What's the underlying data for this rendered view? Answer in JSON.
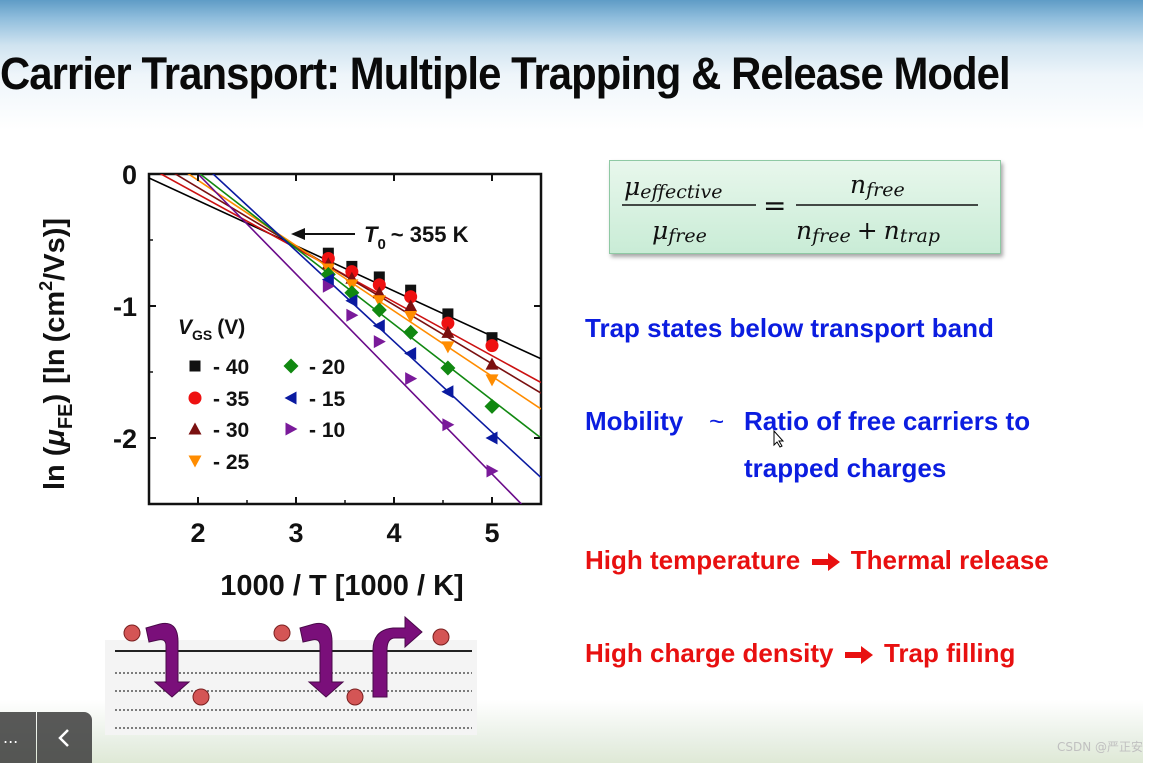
{
  "slide": {
    "title": "Carrier Transport:  Multiple Trapping & Release Model",
    "equation": {
      "lhs_num": "μ",
      "lhs_num_sub": "effective",
      "lhs_den": "μ",
      "lhs_den_sub": "free",
      "equals": "=",
      "rhs_num": "n",
      "rhs_num_sub": "free",
      "rhs_den_a": "n",
      "rhs_den_a_sub": "free",
      "rhs_plus": "+",
      "rhs_den_b": "n",
      "rhs_den_b_sub": "trap"
    },
    "bullets": {
      "b1": "Trap states below transport band",
      "b2_a": "Mobility",
      "b2_tilde": "~",
      "b2_b": "Ratio of free carriers to",
      "b2_c": "trapped charges",
      "b3_a": "High temperature",
      "b3_b": "Thermal release",
      "b4_a": "High charge density",
      "b4_b": "Trap filling"
    },
    "colors": {
      "blue_text": "#0b1de0",
      "red_text": "#e81010",
      "arrow_purple": "#7a0f7a",
      "particle": "#d45555"
    }
  },
  "chart_data": {
    "type": "scatter",
    "ylabel": "ln (μFE) [ln (cm²/Vs)]",
    "ylabel_parts": {
      "pre": "ln",
      "mu": "μ",
      "sub": "FE",
      "unit_pre": "ln",
      "unit_cm": "cm",
      "unit_sup": "2",
      "unit_post": "/Vs"
    },
    "xlabel": "1000 / T [1000 / K]",
    "xlim": [
      1.5,
      5.5
    ],
    "ylim": [
      -2.5,
      0
    ],
    "xticks": [
      2,
      3,
      4,
      5
    ],
    "xtick_labels": [
      "2",
      "3",
      "4",
      "5"
    ],
    "yticks": [
      0,
      -1,
      -2
    ],
    "ytick_labels": [
      "0",
      "-1",
      "-2"
    ],
    "annotation": {
      "label_T": "T",
      "label_sub": "0",
      "label_rest": "~ 355 K",
      "x": 2.82,
      "y": -0.45
    },
    "legend": {
      "title": "V",
      "title_sub": "GS",
      "title_unit": "(V)",
      "placement": "left-center"
    },
    "series": [
      {
        "name": "- 40",
        "marker": "square",
        "color": "#111111",
        "line": "#000000",
        "x": [
          3.33,
          3.57,
          3.85,
          4.17,
          4.55,
          5.0
        ],
        "y": [
          -0.6,
          -0.7,
          -0.78,
          -0.88,
          -1.06,
          -1.24
        ],
        "fit": [
          [
            1.5,
            -0.03
          ],
          [
            5.5,
            -1.4
          ]
        ]
      },
      {
        "name": "- 35",
        "marker": "circle",
        "color": "#ee1111",
        "line": "#cc1111",
        "x": [
          3.33,
          3.57,
          3.85,
          4.17,
          4.55,
          5.0
        ],
        "y": [
          -0.64,
          -0.74,
          -0.84,
          -0.93,
          -1.13,
          -1.3
        ],
        "fit": [
          [
            1.5,
            0.05
          ],
          [
            5.5,
            -1.58
          ]
        ]
      },
      {
        "name": "- 30",
        "marker": "triangle-up",
        "color": "#7a1010",
        "line": "#7a1010",
        "x": [
          3.33,
          3.57,
          3.85,
          4.17,
          4.55,
          5.0
        ],
        "y": [
          -0.68,
          -0.79,
          -0.9,
          -1.0,
          -1.2,
          -1.44
        ],
        "fit": [
          [
            1.5,
            0.12
          ],
          [
            5.5,
            -1.66
          ]
        ]
      },
      {
        "name": "- 25",
        "marker": "triangle-down",
        "color": "#ff8c00",
        "line": "#ff8c00",
        "x": [
          3.33,
          3.57,
          3.85,
          4.17,
          4.55,
          5.0
        ],
        "y": [
          -0.72,
          -0.84,
          -0.96,
          -1.08,
          -1.31,
          -1.56
        ],
        "fit": [
          [
            1.5,
            0.2
          ],
          [
            5.5,
            -1.78
          ]
        ]
      },
      {
        "name": "- 20",
        "marker": "diamond",
        "color": "#118811",
        "line": "#118811",
        "x": [
          3.33,
          3.57,
          3.85,
          4.17,
          4.55,
          5.0
        ],
        "y": [
          -0.76,
          -0.9,
          -1.03,
          -1.2,
          -1.47,
          -1.76
        ],
        "fit": [
          [
            1.5,
            0.3
          ],
          [
            5.5,
            -2.0
          ]
        ]
      },
      {
        "name": "- 15",
        "marker": "triangle-left",
        "color": "#0a1aa0",
        "line": "#0a1aa0",
        "x": [
          3.33,
          3.57,
          3.85,
          4.17,
          4.55,
          5.0
        ],
        "y": [
          -0.8,
          -0.96,
          -1.15,
          -1.36,
          -1.65,
          -2.0
        ],
        "fit": [
          [
            1.5,
            0.45
          ],
          [
            5.5,
            -2.3
          ]
        ]
      },
      {
        "name": "- 10",
        "marker": "triangle-right",
        "color": "#7a1a9a",
        "line": "#6a0a8a",
        "x": [
          3.33,
          3.57,
          3.85,
          4.17,
          4.55,
          5.0
        ],
        "y": [
          -0.85,
          -1.07,
          -1.27,
          -1.55,
          -1.9,
          -2.25
        ],
        "fit": [
          [
            2.0,
            0.0
          ],
          [
            5.3,
            -2.5
          ]
        ]
      }
    ]
  },
  "overlay": {
    "menu_button_label": "...",
    "back_icon": "chevron-left-icon",
    "watermark": "CSDN @严正安"
  }
}
